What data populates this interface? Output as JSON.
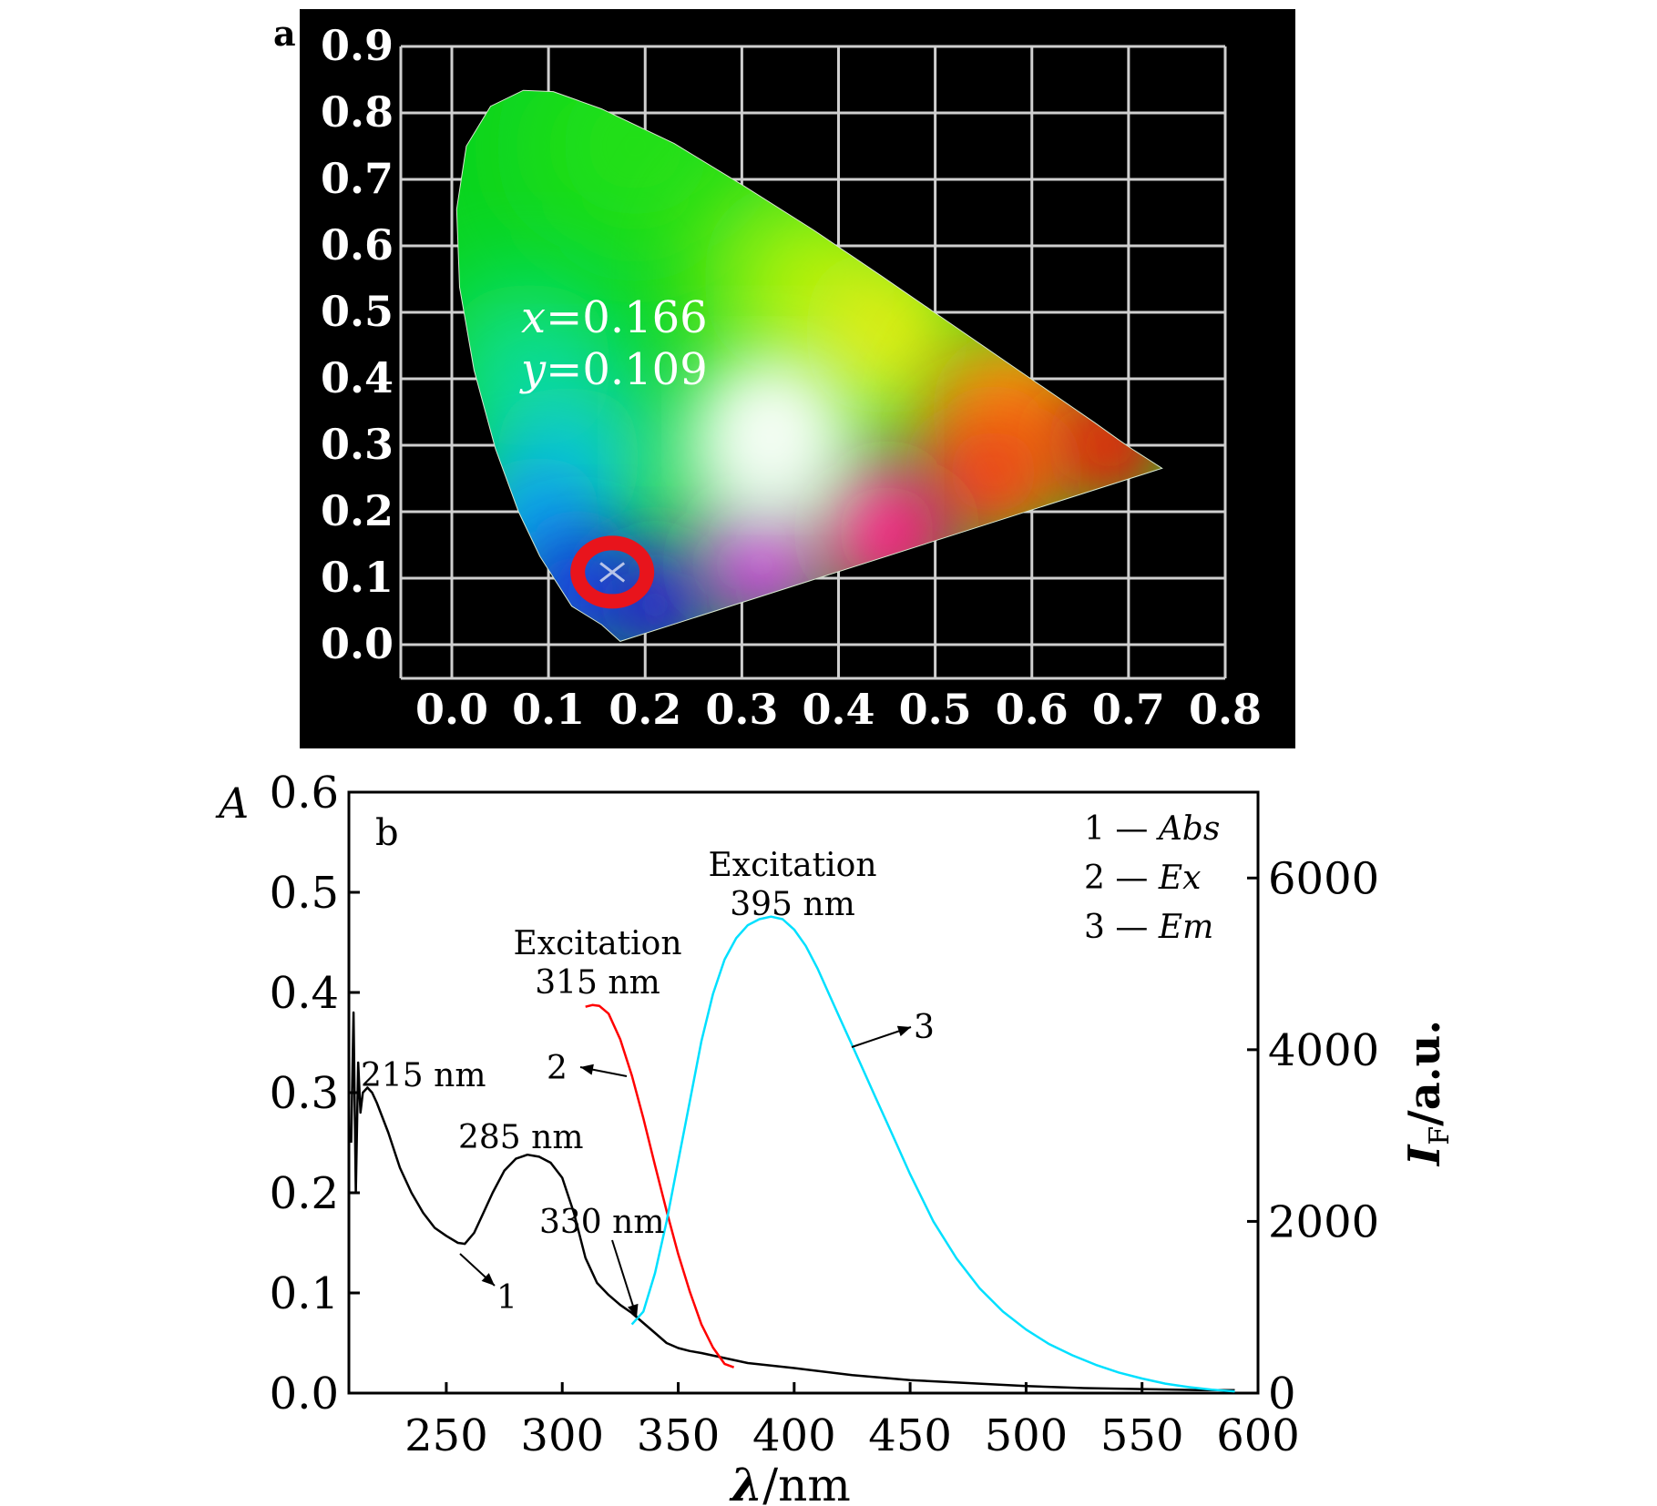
{
  "chart_data": [
    {
      "panel": "a",
      "type": "scatter",
      "x_ticks": [
        "0.0",
        "0.1",
        "0.2",
        "0.3",
        "0.4",
        "0.5",
        "0.6",
        "0.7",
        "0.8"
      ],
      "y_ticks": [
        "0.0",
        "0.1",
        "0.2",
        "0.3",
        "0.4",
        "0.5",
        "0.6",
        "0.7",
        "0.8",
        "0.9"
      ],
      "xlim": [
        0.0,
        0.8
      ],
      "ylim": [
        0.0,
        0.9
      ],
      "grid": true,
      "background": "#000000",
      "point": {
        "x": 0.166,
        "y": 0.109
      },
      "annotation": {
        "x_label": "x",
        "x_value": "=0.166",
        "y_label": "y",
        "y_value": "=0.109"
      },
      "marker_color": "#e8141c"
    },
    {
      "panel": "b",
      "type": "line",
      "xlabel_symbol": "λ",
      "xlabel_unit": "/nm",
      "ylabel_left": "A",
      "ylabel_right_symbol": "I",
      "ylabel_right_sub": "F",
      "ylabel_right_unit": "/a.u.",
      "xlim": [
        208,
        600
      ],
      "ylim_left": [
        0.0,
        0.6
      ],
      "ylim_right": [
        0,
        7000
      ],
      "x_ticks": [
        "250",
        "300",
        "350",
        "400",
        "450",
        "500",
        "550",
        "600"
      ],
      "y_ticks_left": [
        "0.0",
        "0.1",
        "0.2",
        "0.3",
        "0.4",
        "0.5",
        "0.6"
      ],
      "y_ticks_right": [
        "0",
        "2000",
        "4000",
        "6000"
      ],
      "legend": [
        {
          "num": "1",
          "dash": "—",
          "name": "Abs"
        },
        {
          "num": "2",
          "dash": "—",
          "name": "Ex"
        },
        {
          "num": "3",
          "dash": "—",
          "name": "Em"
        }
      ],
      "legend_position": "top-right",
      "series": [
        {
          "name": "Abs",
          "label": "1",
          "axis": "left",
          "color": "#000000",
          "points": [
            [
              209,
              0.25
            ],
            [
              210,
              0.38
            ],
            [
              211,
              0.2
            ],
            [
              212,
              0.33
            ],
            [
              213,
              0.28
            ],
            [
              214,
              0.3
            ],
            [
              216,
              0.305
            ],
            [
              218,
              0.3
            ],
            [
              220,
              0.29
            ],
            [
              225,
              0.26
            ],
            [
              230,
              0.225
            ],
            [
              235,
              0.2
            ],
            [
              240,
              0.18
            ],
            [
              245,
              0.165
            ],
            [
              250,
              0.157
            ],
            [
              255,
              0.15
            ],
            [
              258,
              0.149
            ],
            [
              262,
              0.16
            ],
            [
              266,
              0.18
            ],
            [
              270,
              0.2
            ],
            [
              275,
              0.222
            ],
            [
              280,
              0.234
            ],
            [
              285,
              0.238
            ],
            [
              290,
              0.236
            ],
            [
              295,
              0.23
            ],
            [
              300,
              0.215
            ],
            [
              305,
              0.18
            ],
            [
              310,
              0.135
            ],
            [
              315,
              0.11
            ],
            [
              320,
              0.098
            ],
            [
              325,
              0.088
            ],
            [
              330,
              0.08
            ],
            [
              335,
              0.07
            ],
            [
              340,
              0.06
            ],
            [
              345,
              0.05
            ],
            [
              350,
              0.045
            ],
            [
              355,
              0.042
            ],
            [
              360,
              0.04
            ],
            [
              370,
              0.035
            ],
            [
              380,
              0.03
            ],
            [
              400,
              0.025
            ],
            [
              425,
              0.018
            ],
            [
              450,
              0.013
            ],
            [
              475,
              0.01
            ],
            [
              500,
              0.007
            ],
            [
              525,
              0.005
            ],
            [
              550,
              0.004
            ],
            [
              575,
              0.003
            ],
            [
              590,
              0.003
            ]
          ]
        },
        {
          "name": "Ex",
          "label": "2",
          "axis": "right",
          "color": "#ff0000",
          "points": [
            [
              310,
              4500
            ],
            [
              313,
              4520
            ],
            [
              316,
              4510
            ],
            [
              320,
              4420
            ],
            [
              325,
              4120
            ],
            [
              330,
              3700
            ],
            [
              335,
              3200
            ],
            [
              340,
              2650
            ],
            [
              345,
              2120
            ],
            [
              350,
              1620
            ],
            [
              355,
              1180
            ],
            [
              360,
              800
            ],
            [
              365,
              530
            ],
            [
              370,
              340
            ],
            [
              374,
              300
            ]
          ]
        },
        {
          "name": "Em",
          "label": "3",
          "axis": "right",
          "color": "#00e0ff",
          "points": [
            [
              330,
              800
            ],
            [
              335,
              950
            ],
            [
              340,
              1400
            ],
            [
              345,
              2000
            ],
            [
              350,
              2700
            ],
            [
              355,
              3400
            ],
            [
              360,
              4100
            ],
            [
              365,
              4650
            ],
            [
              370,
              5050
            ],
            [
              375,
              5300
            ],
            [
              380,
              5450
            ],
            [
              385,
              5520
            ],
            [
              390,
              5550
            ],
            [
              395,
              5520
            ],
            [
              400,
              5400
            ],
            [
              405,
              5210
            ],
            [
              410,
              4950
            ],
            [
              415,
              4650
            ],
            [
              420,
              4350
            ],
            [
              425,
              4050
            ],
            [
              430,
              3750
            ],
            [
              435,
              3450
            ],
            [
              440,
              3150
            ],
            [
              445,
              2850
            ],
            [
              450,
              2550
            ],
            [
              460,
              2000
            ],
            [
              470,
              1570
            ],
            [
              480,
              1220
            ],
            [
              490,
              950
            ],
            [
              500,
              740
            ],
            [
              510,
              570
            ],
            [
              520,
              440
            ],
            [
              530,
              330
            ],
            [
              540,
              240
            ],
            [
              550,
              170
            ],
            [
              560,
              110
            ],
            [
              570,
              70
            ],
            [
              580,
              40
            ],
            [
              590,
              20
            ]
          ]
        }
      ],
      "annotations": [
        {
          "text": "215 nm",
          "x": 215,
          "y": 0.305
        },
        {
          "text": "285 nm",
          "x": 285,
          "y": 0.238
        },
        {
          "text": "330 nm",
          "x": 330,
          "y": 0.08
        },
        {
          "line1": "Excitation",
          "line2": "315 nm",
          "x": 315,
          "y_right": 4520
        },
        {
          "line1": "Excitation",
          "line2": "395 nm",
          "x": 395,
          "y_right": 5550
        }
      ]
    }
  ],
  "panel_letters": {
    "a": "a",
    "b": "b"
  }
}
